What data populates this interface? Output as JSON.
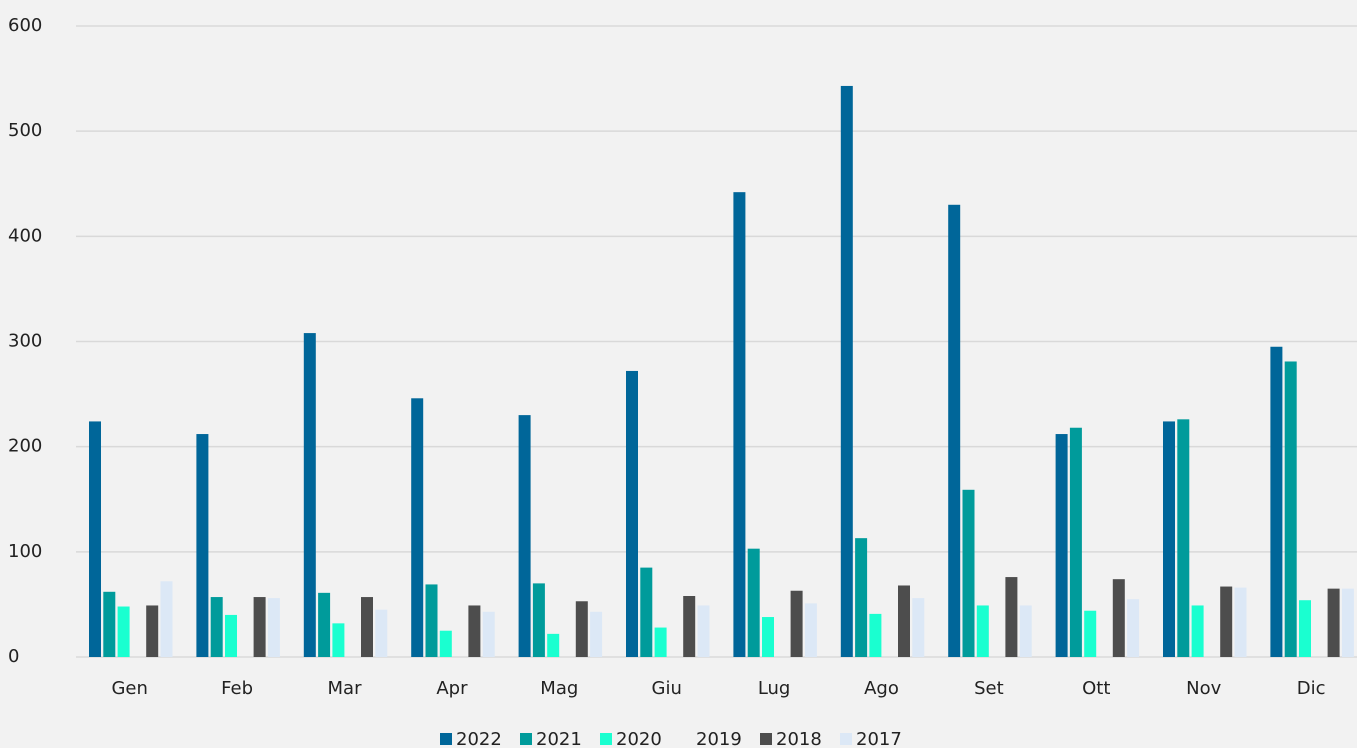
{
  "chart_data": {
    "type": "bar",
    "categories": [
      "Gen",
      "Feb",
      "Mar",
      "Apr",
      "Mag",
      "Giu",
      "Lug",
      "Ago",
      "Set",
      "Ott",
      "Nov",
      "Dic"
    ],
    "series": [
      {
        "name": "2022",
        "color": "#006699",
        "values": [
          224,
          212,
          308,
          246,
          230,
          272,
          442,
          543,
          430,
          212,
          224,
          295
        ]
      },
      {
        "name": "2021",
        "color": "#009b9b",
        "values": [
          62,
          57,
          61,
          69,
          70,
          85,
          103,
          113,
          159,
          218,
          226,
          281
        ]
      },
      {
        "name": "2020",
        "color": "#1affd0",
        "values": [
          48,
          40,
          32,
          25,
          22,
          28,
          38,
          41,
          49,
          44,
          49,
          54
        ]
      },
      {
        "name": "2019",
        "color": "#f2f2f2",
        "values": [
          null,
          null,
          null,
          null,
          null,
          null,
          null,
          null,
          null,
          null,
          null,
          null
        ]
      },
      {
        "name": "2018",
        "color": "#4d4d4d",
        "values": [
          49,
          57,
          57,
          49,
          53,
          58,
          63,
          68,
          76,
          74,
          67,
          65
        ]
      },
      {
        "name": "2017",
        "color": "#dce8f6",
        "values": [
          72,
          56,
          45,
          43,
          43,
          49,
          51,
          56,
          49,
          55,
          66,
          65
        ]
      }
    ],
    "ylim": [
      0,
      600
    ],
    "yticks": [
      0,
      100,
      200,
      300,
      400,
      500,
      600
    ],
    "grid": true,
    "legend": "bottom"
  }
}
